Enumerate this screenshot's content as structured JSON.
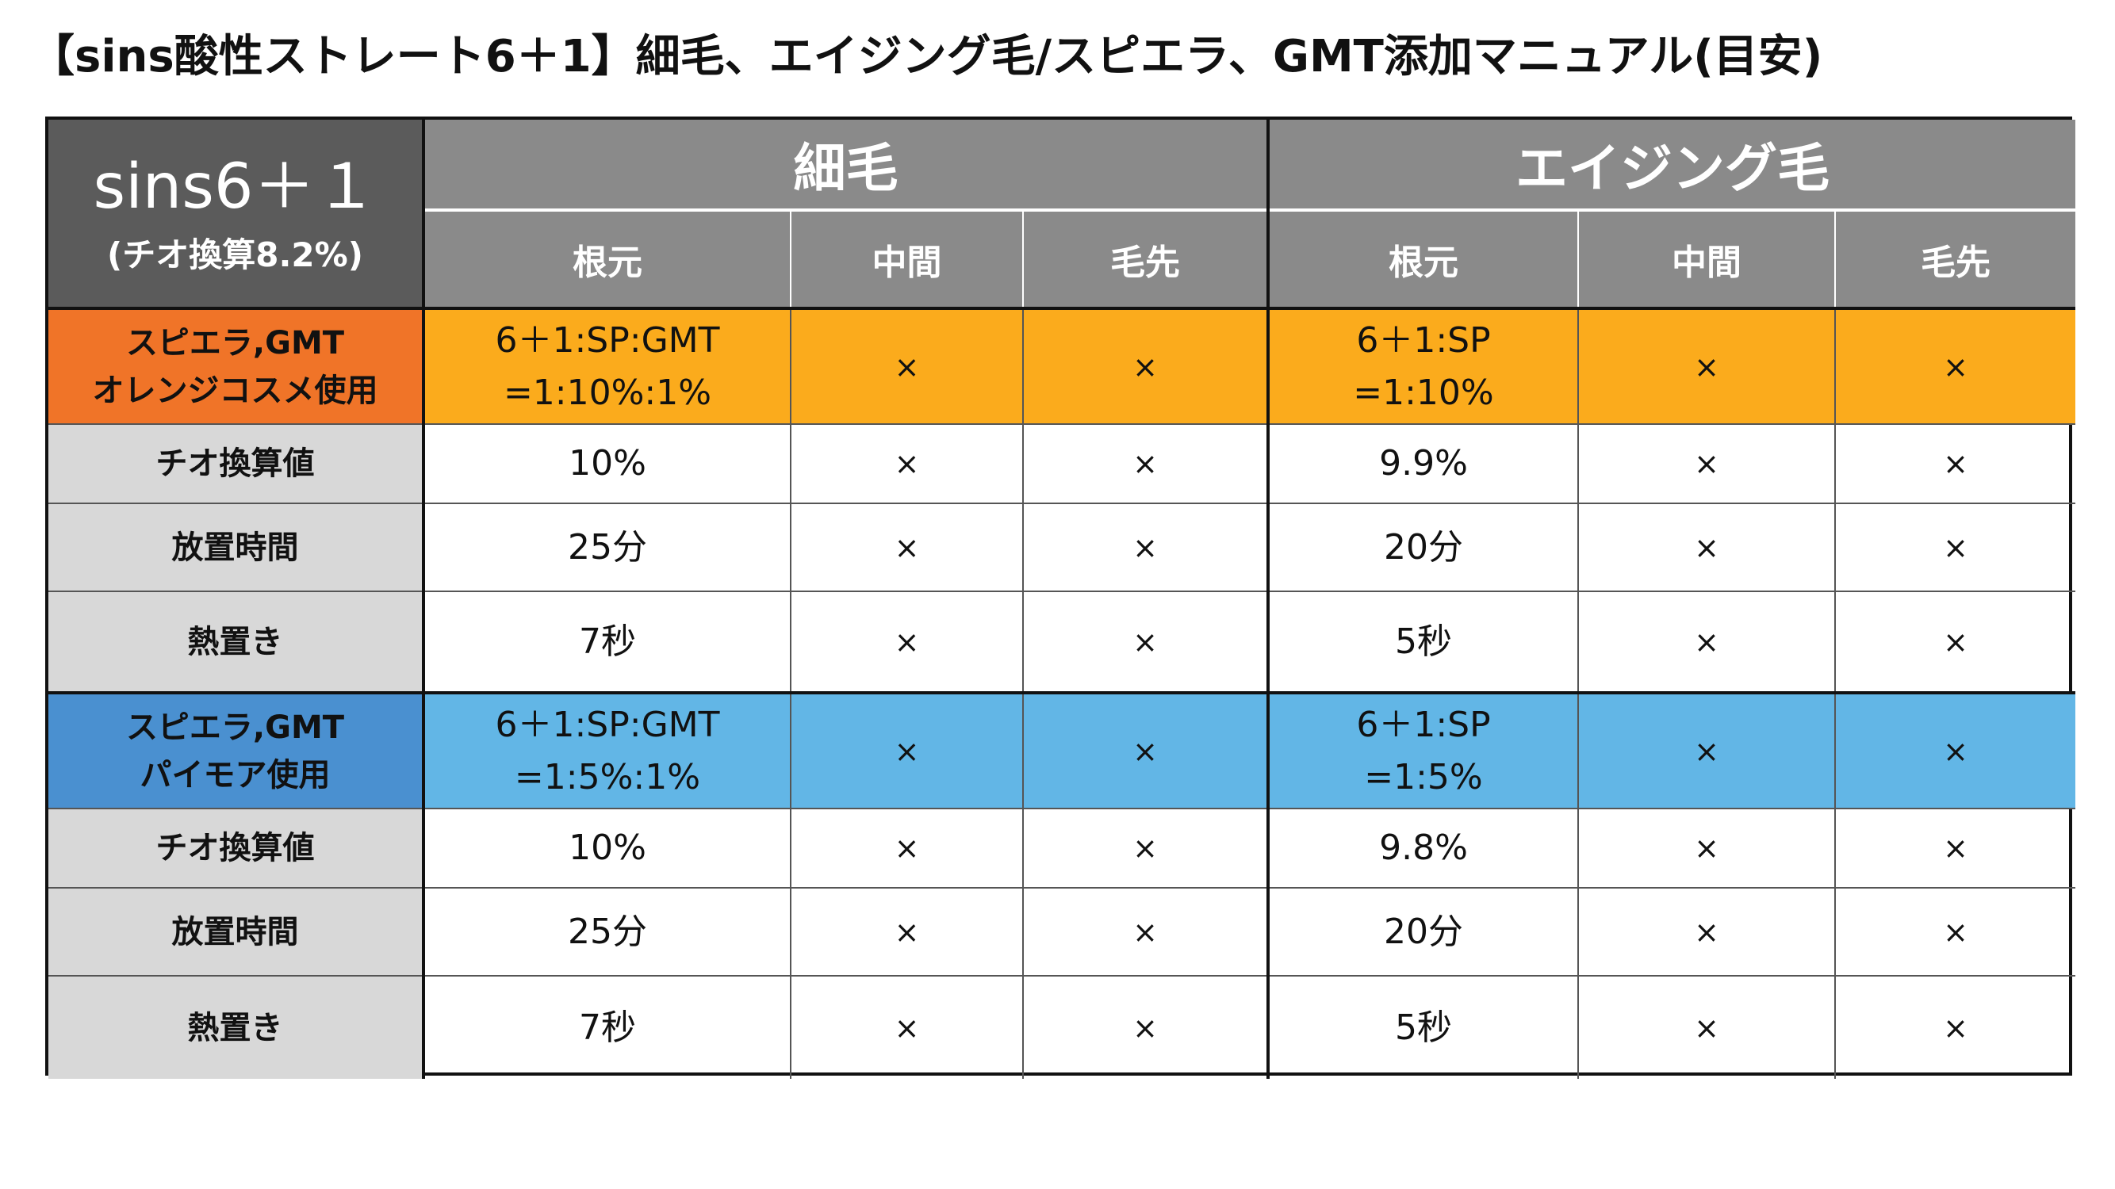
{
  "title": "【sins酸性ストレート6＋1】細毛、エイジング毛/スピエラ、GMT添加マニュアル(目安)",
  "corner": {
    "main": "sins6＋１",
    "sub": "(チオ換算8.2%)"
  },
  "colors": {
    "header_gray": "#8a8a8a",
    "corner_gray": "#5b5b5b",
    "label_gray": "#d8d8d8",
    "orange_label": "#f07428",
    "orange_data": "#fbab1c",
    "blue_label": "#4a90d0",
    "blue_data": "#62b6e6"
  },
  "groups": [
    {
      "title": "細毛",
      "columns": [
        "根元",
        "中間",
        "毛先"
      ]
    },
    {
      "title": "エイジング毛",
      "columns": [
        "根元",
        "中間",
        "毛先"
      ]
    }
  ],
  "sections": [
    {
      "theme": "orange",
      "rows": [
        {
          "label": "スピエラ,GMT\nオレンジコスメ使用",
          "g1": [
            "6＋1:SP:GMT\n=1:10%:1%",
            "×",
            "×"
          ],
          "g2": [
            "6＋1:SP\n=1:10%",
            "×",
            "×"
          ]
        },
        {
          "label": "チオ換算値",
          "g1": [
            "10%",
            "×",
            "×"
          ],
          "g2": [
            "9.9%",
            "×",
            "×"
          ]
        },
        {
          "label": "放置時間",
          "g1": [
            "25分",
            "×",
            "×"
          ],
          "g2": [
            "20分",
            "×",
            "×"
          ]
        },
        {
          "label": "熱置き",
          "g1": [
            "7秒",
            "×",
            "×"
          ],
          "g2": [
            "5秒",
            "×",
            "×"
          ]
        }
      ]
    },
    {
      "theme": "blue",
      "rows": [
        {
          "label": "スピエラ,GMT\nパイモア使用",
          "g1": [
            "6＋1:SP:GMT\n=1:5%:1%",
            "×",
            "×"
          ],
          "g2": [
            "6＋1:SP\n=1:5%",
            "×",
            "×"
          ]
        },
        {
          "label": "チオ換算値",
          "g1": [
            "10%",
            "×",
            "×"
          ],
          "g2": [
            "9.8%",
            "×",
            "×"
          ]
        },
        {
          "label": "放置時間",
          "g1": [
            "25分",
            "×",
            "×"
          ],
          "g2": [
            "20分",
            "×",
            "×"
          ]
        },
        {
          "label": "熱置き",
          "g1": [
            "7秒",
            "×",
            "×"
          ],
          "g2": [
            "5秒",
            "×",
            "×"
          ]
        }
      ]
    }
  ]
}
